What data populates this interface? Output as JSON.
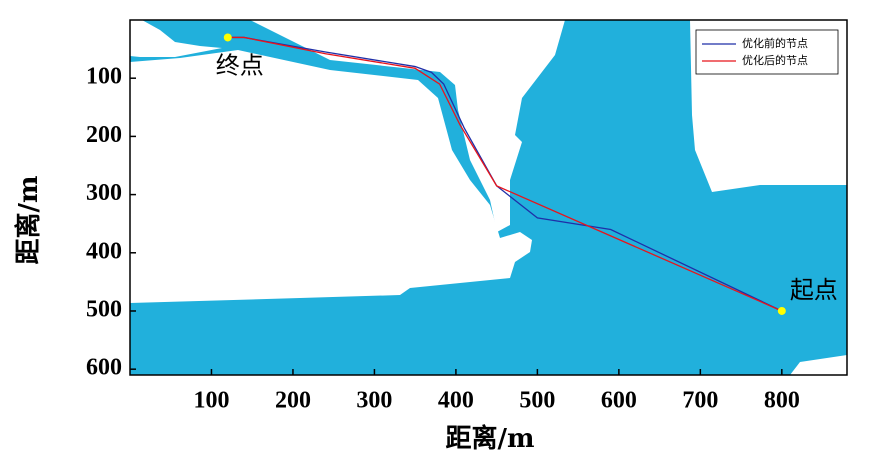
{
  "chart_data": {
    "type": "line",
    "xlabel": "距离/m",
    "ylabel": "距离/m",
    "xlim": [
      0,
      880
    ],
    "ylim": [
      610,
      0
    ],
    "xticks": [
      100,
      200,
      300,
      400,
      500,
      600,
      700,
      800
    ],
    "yticks": [
      100,
      200,
      300,
      400,
      500,
      600
    ],
    "legend": "upper right",
    "series": [
      {
        "name": "优化前的节点",
        "color": "#1f2fa8",
        "x": [
          120,
          140,
          240,
          350,
          370,
          385,
          410,
          450,
          500,
          590,
          800
        ],
        "values": [
          30,
          30,
          55,
          80,
          90,
          110,
          185,
          285,
          340,
          360,
          500
        ]
      },
      {
        "name": "优化后的节点",
        "color": "#e8141b",
        "x": [
          120,
          140,
          240,
          350,
          380,
          405,
          450,
          800
        ],
        "values": [
          30,
          30,
          58,
          83,
          110,
          180,
          285,
          500
        ]
      }
    ],
    "points": {
      "color": "#ffff00",
      "labels": [
        "起点",
        "终点"
      ],
      "x": [
        800,
        120
      ],
      "values": [
        500,
        30
      ]
    }
  }
}
